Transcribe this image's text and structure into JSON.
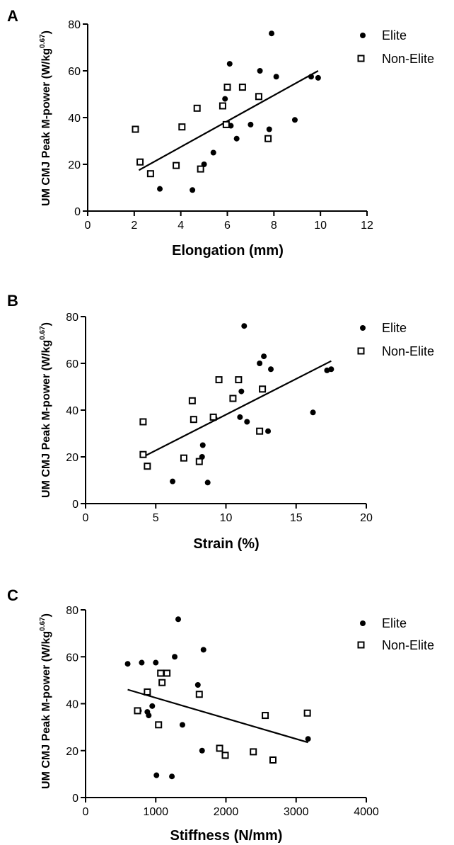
{
  "chart_data": [
    {
      "type": "scatter",
      "panel": "A",
      "xlabel": "Elongation (mm)",
      "ylabel": "UM CMJ Peak M-power (W/kg",
      "ylabel_sup": "0.67",
      "ylabel_close": ")",
      "xlim": [
        0,
        12
      ],
      "ylim": [
        0,
        80
      ],
      "xticks": [
        0,
        2,
        4,
        6,
        8,
        10,
        12
      ],
      "yticks": [
        0,
        20,
        40,
        60,
        80
      ],
      "legend": "top-right",
      "series": [
        {
          "name": "Elite",
          "marker": "filled-circle",
          "points": [
            [
              3.1,
              9.5
            ],
            [
              4.5,
              9
            ],
            [
              5.0,
              20
            ],
            [
              5.4,
              25
            ],
            [
              5.9,
              48
            ],
            [
              6.1,
              63
            ],
            [
              6.15,
              36.5
            ],
            [
              6.4,
              31
            ],
            [
              7.0,
              37
            ],
            [
              7.4,
              60
            ],
            [
              7.8,
              35
            ],
            [
              7.9,
              76
            ],
            [
              8.1,
              57.5
            ],
            [
              8.9,
              39
            ],
            [
              9.6,
              57.5
            ],
            [
              9.9,
              57
            ]
          ]
        },
        {
          "name": "Non-Elite",
          "marker": "open-square",
          "points": [
            [
              2.05,
              35
            ],
            [
              2.25,
              21
            ],
            [
              2.7,
              16
            ],
            [
              3.8,
              19.5
            ],
            [
              4.05,
              36
            ],
            [
              4.7,
              44
            ],
            [
              4.85,
              18
            ],
            [
              5.8,
              45
            ],
            [
              5.95,
              37
            ],
            [
              6.0,
              53
            ],
            [
              6.65,
              53
            ],
            [
              7.35,
              49
            ],
            [
              7.75,
              31
            ]
          ]
        }
      ],
      "regression": {
        "x": [
          2.2,
          9.9
        ],
        "y": [
          17.5,
          60
        ]
      }
    },
    {
      "type": "scatter",
      "panel": "B",
      "xlabel": "Strain (%)",
      "ylabel": "UM CMJ Peak M-power (W/kg",
      "ylabel_sup": "0.67",
      "ylabel_close": ")",
      "xlim": [
        0,
        20
      ],
      "ylim": [
        0,
        80
      ],
      "xticks": [
        0,
        5,
        10,
        15,
        20
      ],
      "yticks": [
        0,
        20,
        40,
        60,
        80
      ],
      "legend": "top-right",
      "series": [
        {
          "name": "Elite",
          "marker": "filled-circle",
          "points": [
            [
              6.2,
              9.5
            ],
            [
              8.7,
              9
            ],
            [
              8.3,
              20
            ],
            [
              8.35,
              25
            ],
            [
              9.2,
              36.5
            ],
            [
              11.0,
              37
            ],
            [
              11.1,
              48
            ],
            [
              11.5,
              35
            ],
            [
              12.4,
              60
            ],
            [
              12.7,
              63
            ],
            [
              13.0,
              31
            ],
            [
              13.2,
              57.5
            ],
            [
              11.3,
              76
            ],
            [
              16.2,
              39
            ],
            [
              17.2,
              57
            ],
            [
              17.5,
              57.5
            ]
          ]
        },
        {
          "name": "Non-Elite",
          "marker": "open-square",
          "points": [
            [
              4.1,
              35
            ],
            [
              4.1,
              21
            ],
            [
              4.4,
              16
            ],
            [
              7.0,
              19.5
            ],
            [
              7.7,
              36
            ],
            [
              7.6,
              44
            ],
            [
              8.1,
              18
            ],
            [
              9.1,
              37
            ],
            [
              9.5,
              53
            ],
            [
              10.5,
              45
            ],
            [
              10.9,
              53
            ],
            [
              12.6,
              49
            ],
            [
              12.4,
              31
            ]
          ]
        }
      ],
      "regression": {
        "x": [
          4.1,
          17.5
        ],
        "y": [
          20,
          61
        ]
      }
    },
    {
      "type": "scatter",
      "panel": "C",
      "xlabel": "Stiffness (N/mm)",
      "ylabel": "UM CMJ Peak M-power (W/kg",
      "ylabel_sup": "0.67",
      "ylabel_close": ")",
      "xlim": [
        0,
        4000
      ],
      "ylim": [
        0,
        80
      ],
      "xticks": [
        0,
        1000,
        2000,
        3000,
        4000
      ],
      "yticks": [
        0,
        20,
        40,
        60,
        80
      ],
      "legend": "top-right",
      "series": [
        {
          "name": "Elite",
          "marker": "filled-circle",
          "points": [
            [
              600,
              57
            ],
            [
              800,
              57.5
            ],
            [
              880,
              36.5
            ],
            [
              900,
              35
            ],
            [
              950,
              39
            ],
            [
              1000,
              57.5
            ],
            [
              1010,
              9.5
            ],
            [
              1230,
              9
            ],
            [
              1270,
              60
            ],
            [
              1320,
              76
            ],
            [
              1380,
              31
            ],
            [
              1600,
              48
            ],
            [
              1660,
              20
            ],
            [
              1680,
              63
            ],
            [
              3170,
              25
            ],
            [
              760,
              37
            ]
          ]
        },
        {
          "name": "Non-Elite",
          "marker": "open-square",
          "points": [
            [
              740,
              37
            ],
            [
              880,
              45
            ],
            [
              1040,
              31
            ],
            [
              1070,
              53
            ],
            [
              1090,
              49
            ],
            [
              1160,
              53
            ],
            [
              1620,
              44
            ],
            [
              1910,
              21
            ],
            [
              1990,
              18
            ],
            [
              2390,
              19.5
            ],
            [
              2560,
              35
            ],
            [
              2670,
              16
            ],
            [
              3160,
              36
            ]
          ]
        }
      ],
      "regression": {
        "x": [
          600,
          3170
        ],
        "y": [
          46,
          23.5
        ]
      }
    }
  ],
  "panels": [
    {
      "letter": "A"
    },
    {
      "letter": "B"
    },
    {
      "letter": "C"
    }
  ]
}
